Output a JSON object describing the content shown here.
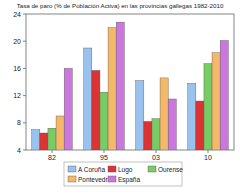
{
  "chart_data": {
    "type": "bar",
    "title": "Tasa de paro (% de Población Activa) en las provincias gallegas 1982-2010",
    "categories": [
      "82",
      "95",
      "03",
      "10"
    ],
    "series": [
      {
        "name": "A Coruña",
        "color": "#99c2ee",
        "values": [
          7.0,
          19.0,
          14.2,
          13.8
        ]
      },
      {
        "name": "Lugo",
        "color": "#dd3333",
        "values": [
          6.5,
          15.7,
          8.2,
          11.2
        ]
      },
      {
        "name": "Ourense",
        "color": "#77cc66",
        "values": [
          7.2,
          12.5,
          8.6,
          16.7
        ]
      },
      {
        "name": "Pontevedra",
        "color": "#f5b866",
        "values": [
          9.0,
          22.0,
          14.6,
          18.3
        ]
      },
      {
        "name": "España",
        "color": "#cc77dd",
        "values": [
          16.0,
          22.8,
          11.5,
          20.1
        ]
      }
    ],
    "ylim": [
      4,
      24
    ],
    "yticks": [
      4,
      8,
      12,
      16,
      20,
      24
    ],
    "grid": false,
    "legend": "bottom"
  }
}
